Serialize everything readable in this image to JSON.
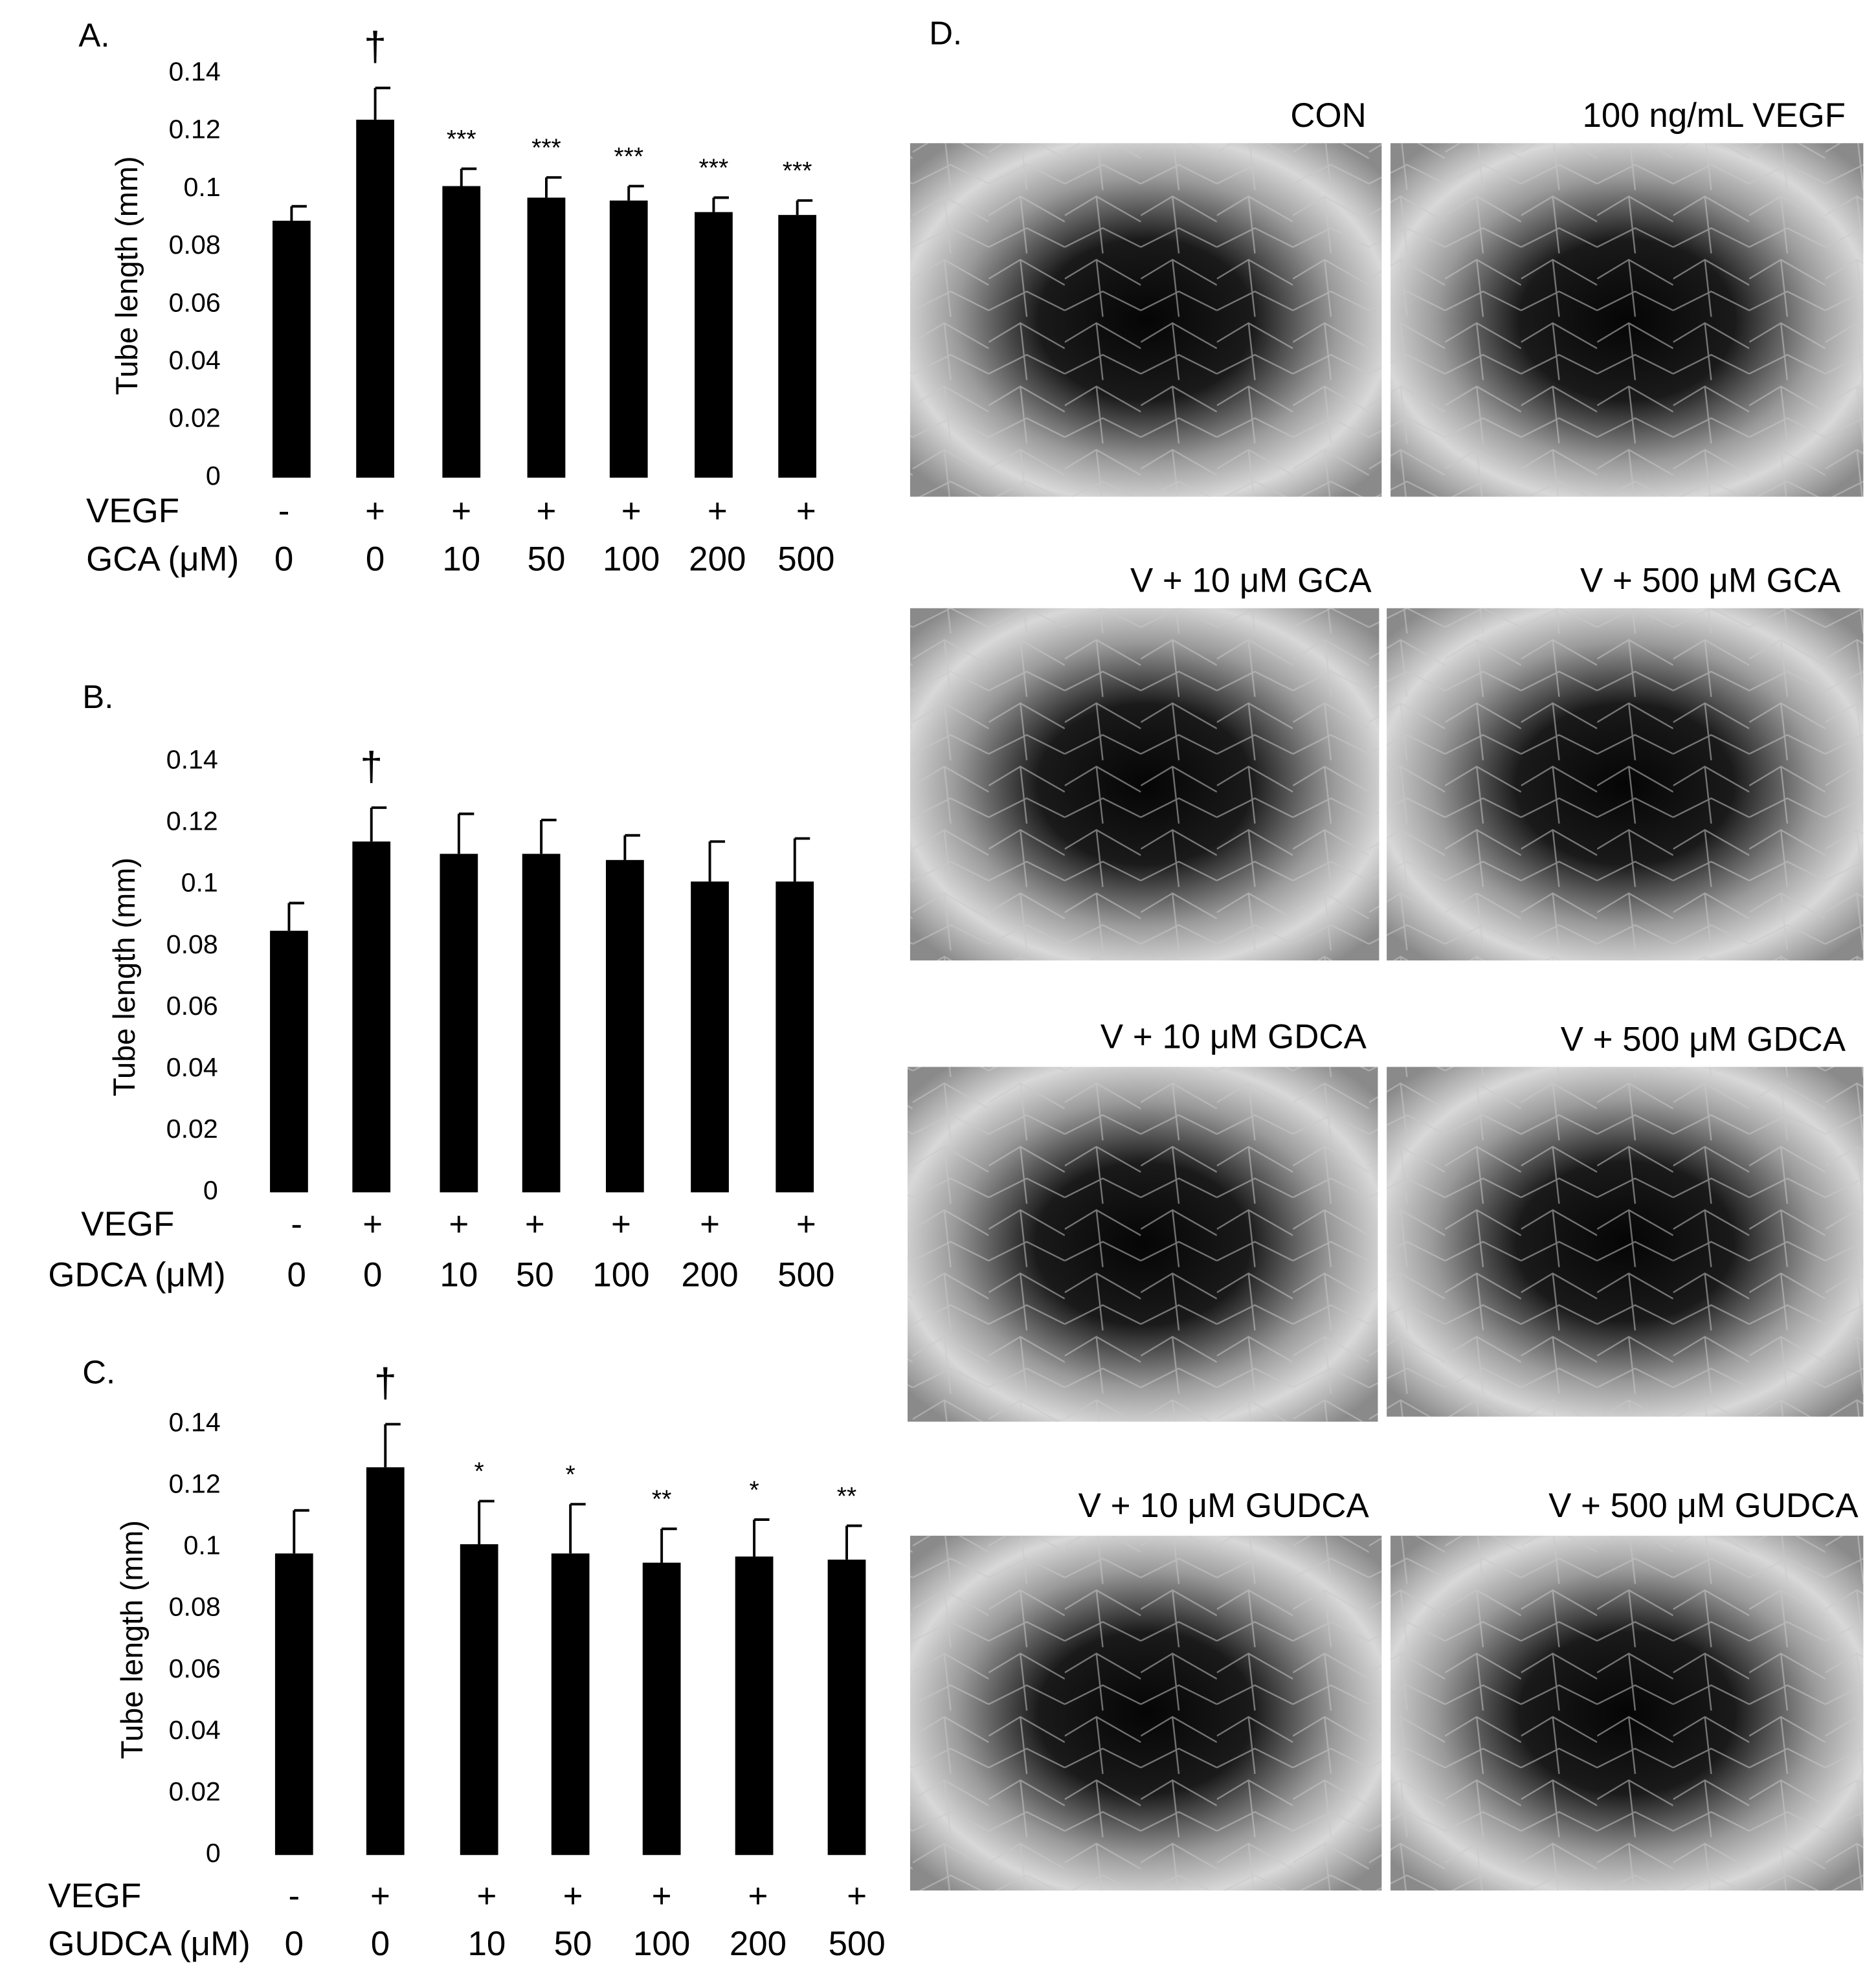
{
  "chart_data": [
    {
      "type": "bar",
      "panel": "A.",
      "ylabel": "Tube length (mm)",
      "row_labels": [
        "VEGF",
        "GCA (μM)"
      ],
      "vegf": [
        "-",
        "+",
        "+",
        "+",
        "+",
        "+",
        "+"
      ],
      "categories": [
        "0",
        "0",
        "10",
        "50",
        "100",
        "200",
        "500"
      ],
      "values": [
        0.089,
        0.124,
        0.101,
        0.097,
        0.096,
        0.092,
        0.091
      ],
      "errors": [
        0.005,
        0.011,
        0.006,
        0.007,
        0.005,
        0.005,
        0.005
      ],
      "annotations": [
        null,
        "†",
        "***",
        "***",
        "***",
        "***",
        "***"
      ],
      "color": "#000000",
      "ylim": [
        0,
        0.14
      ],
      "yticks": [
        0,
        0.02,
        0.04,
        0.06,
        0.08,
        0.1,
        0.12,
        0.14
      ]
    },
    {
      "type": "bar",
      "panel": "B.",
      "ylabel": "Tube length (mm)",
      "row_labels": [
        "VEGF",
        "GDCA (μM)"
      ],
      "vegf": [
        "-",
        "+",
        "+",
        "+",
        "+",
        "+",
        "+"
      ],
      "categories": [
        "0",
        "0",
        "10",
        "50",
        "100",
        "200",
        "500"
      ],
      "values": [
        0.085,
        0.114,
        0.11,
        0.11,
        0.108,
        0.101,
        0.101
      ],
      "errors": [
        0.009,
        0.011,
        0.013,
        0.011,
        0.008,
        0.013,
        0.014
      ],
      "annotations": [
        null,
        "†",
        null,
        null,
        null,
        null,
        null
      ],
      "color": "#000000",
      "ylim": [
        0,
        0.14
      ],
      "yticks": [
        0,
        0.02,
        0.04,
        0.06,
        0.08,
        0.1,
        0.12,
        0.14
      ]
    },
    {
      "type": "bar",
      "panel": "C.",
      "ylabel": "Tube length (mm)",
      "row_labels": [
        "VEGF",
        "GUDCA (μM)"
      ],
      "vegf": [
        "-",
        "+",
        "+",
        "+",
        "+",
        "+",
        "+"
      ],
      "categories": [
        "0",
        "0",
        "10",
        "50",
        "100",
        "200",
        "500"
      ],
      "values": [
        0.098,
        0.126,
        0.101,
        0.098,
        0.095,
        0.097,
        0.096
      ],
      "errors": [
        0.014,
        0.014,
        0.014,
        0.016,
        0.011,
        0.012,
        0.011
      ],
      "annotations": [
        null,
        "†",
        "*",
        "*",
        "**",
        "*",
        "**"
      ],
      "color": "#000000",
      "ylim": [
        0,
        0.14
      ],
      "yticks": [
        0,
        0.02,
        0.04,
        0.06,
        0.08,
        0.1,
        0.12,
        0.14
      ]
    }
  ],
  "figure_d": {
    "panel": "D.",
    "images": [
      "CON",
      "100 ng/mL VEGF",
      "V + 10 μM GCA",
      "V + 500 μM GCA",
      "V + 10 μM GDCA",
      "V + 500 μM GDCA",
      "V + 10 μM GUDCA",
      "V + 500 μM GUDCA"
    ]
  }
}
